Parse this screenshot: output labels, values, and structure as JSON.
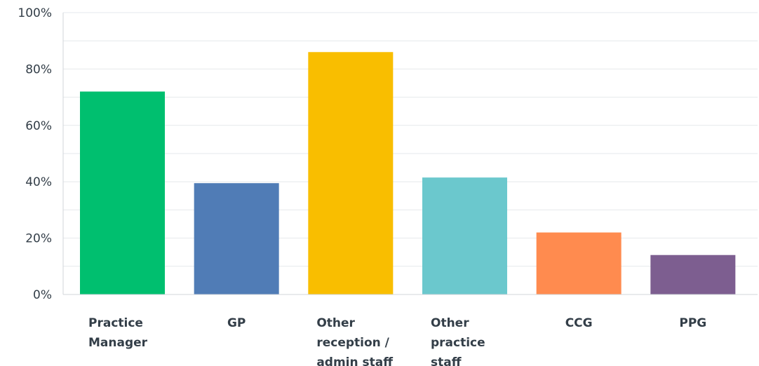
{
  "chart_data": {
    "type": "bar",
    "categories": [
      [
        "Practice",
        "Manager"
      ],
      [
        "GP"
      ],
      [
        "Other",
        "reception /",
        "admin staff"
      ],
      [
        "Other",
        "practice",
        "staff"
      ],
      [
        "CCG"
      ],
      [
        "PPG"
      ]
    ],
    "values": [
      72,
      39.5,
      86,
      41.5,
      22,
      14
    ],
    "colors": [
      "#00bf6f",
      "#507cb6",
      "#f9be00",
      "#6bc8cd",
      "#ff8b4f",
      "#7d5e90"
    ],
    "yticks": [
      "0%",
      "20%",
      "40%",
      "60%",
      "80%",
      "100%"
    ],
    "ylim": [
      0,
      100
    ],
    "grid": true
  }
}
